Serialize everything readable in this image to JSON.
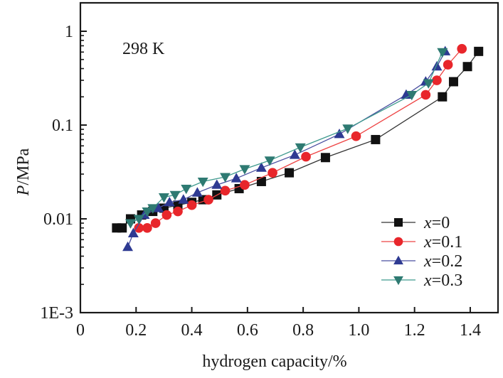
{
  "chart_data": {
    "type": "scatter",
    "title": "",
    "xlabel": "hydrogen capacity/%",
    "ylabel_italic": "P",
    "ylabel_rest": "/MPa",
    "annotation": "298 K",
    "xlim": [
      0,
      1.5
    ],
    "ylim": [
      0.001,
      2
    ],
    "yscale": "log",
    "grid": false,
    "legend_position": "bottom-right",
    "xticks": [
      0,
      0.2,
      0.4,
      0.6,
      0.8,
      1.0,
      1.2,
      1.4
    ],
    "xtick_labels": [
      "0",
      "0.2",
      "0.4",
      "0.6",
      "0.8",
      "1.0",
      "1.2",
      "1.4"
    ],
    "yticks": [
      0.001,
      0.01,
      0.1,
      1
    ],
    "ytick_labels": [
      "1E-3",
      "0.01",
      "0.1",
      "1"
    ],
    "series": [
      {
        "name": "x=0",
        "legend_var": "x",
        "legend_val": "=0",
        "marker": "square",
        "color": "#111111",
        "line_color": "#333333",
        "x": [
          0.13,
          0.15,
          0.18,
          0.22,
          0.26,
          0.3,
          0.35,
          0.4,
          0.44,
          0.49,
          0.57,
          0.65,
          0.75,
          0.88,
          1.06,
          1.3,
          1.34,
          1.39,
          1.43
        ],
        "y": [
          0.008,
          0.008,
          0.01,
          0.011,
          0.012,
          0.013,
          0.014,
          0.015,
          0.016,
          0.018,
          0.021,
          0.025,
          0.031,
          0.045,
          0.07,
          0.2,
          0.29,
          0.42,
          0.61
        ]
      },
      {
        "name": "x=0.1",
        "legend_var": "x",
        "legend_val": "=0.1",
        "marker": "circle",
        "color": "#e8262b",
        "line_color": "#ee4444",
        "x": [
          0.21,
          0.24,
          0.27,
          0.31,
          0.35,
          0.4,
          0.46,
          0.52,
          0.59,
          0.69,
          0.81,
          0.99,
          1.24,
          1.28,
          1.32,
          1.37
        ],
        "y": [
          0.008,
          0.008,
          0.009,
          0.011,
          0.012,
          0.014,
          0.016,
          0.02,
          0.023,
          0.031,
          0.046,
          0.076,
          0.21,
          0.3,
          0.44,
          0.65
        ]
      },
      {
        "name": "x=0.2",
        "legend_var": "x",
        "legend_val": "=0.2",
        "marker": "triangle-up",
        "color": "#2e3a92",
        "line_color": "#4a4fa0",
        "x": [
          0.17,
          0.19,
          0.23,
          0.28,
          0.32,
          0.37,
          0.42,
          0.49,
          0.56,
          0.65,
          0.77,
          0.93,
          1.17,
          1.24,
          1.28,
          1.31
        ],
        "y": [
          0.005,
          0.007,
          0.011,
          0.013,
          0.015,
          0.016,
          0.019,
          0.023,
          0.027,
          0.035,
          0.048,
          0.08,
          0.21,
          0.29,
          0.42,
          0.61
        ]
      },
      {
        "name": "x=0.3",
        "legend_var": "x",
        "legend_val": "=0.3",
        "marker": "triangle-down",
        "color": "#2e7a72",
        "line_color": "#3f9a8e",
        "x": [
          0.18,
          0.21,
          0.24,
          0.26,
          0.3,
          0.34,
          0.38,
          0.44,
          0.52,
          0.59,
          0.68,
          0.79,
          0.96,
          1.19,
          1.25,
          1.3
        ],
        "y": [
          0.009,
          0.01,
          0.012,
          0.013,
          0.017,
          0.018,
          0.021,
          0.025,
          0.028,
          0.034,
          0.042,
          0.058,
          0.092,
          0.21,
          0.28,
          0.6
        ]
      }
    ]
  }
}
